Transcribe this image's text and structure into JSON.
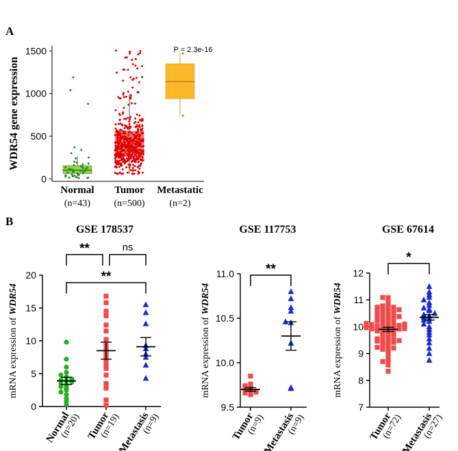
{
  "figure": {
    "panel_a_label": "A",
    "panel_b_label": "B"
  },
  "chart_data": [
    {
      "type": "box",
      "panel": "A",
      "ylabel": "WDR54 gene expression",
      "ylim": [
        -30,
        1560
      ],
      "yticks": [
        0,
        500,
        1000,
        1500
      ],
      "annotation": "P = 2.3e-16",
      "groups": [
        {
          "name": "Normal",
          "n_label": "(n=43)",
          "q1": 60,
          "median": 100,
          "q3": 155,
          "whisker_low": 8,
          "whisker_high": 260,
          "color": "#8BD843",
          "point_color": "#1e8c1e",
          "points": [
            1190,
            1040,
            880,
            370,
            340,
            300,
            250,
            240,
            200,
            190,
            180,
            170,
            160,
            150,
            140,
            135,
            130,
            125,
            120,
            115,
            110,
            105,
            100,
            95,
            90,
            85,
            80,
            75,
            70,
            65,
            60,
            55,
            50,
            45,
            40,
            35,
            30,
            25,
            20,
            15,
            12,
            10,
            8
          ]
        },
        {
          "name": "Tumor",
          "n_label": "(n=500)",
          "q1": 260,
          "median": 380,
          "q3": 560,
          "whisker_low": 60,
          "whisker_high": 1000,
          "color": "#F24A4A",
          "point_color": "#e00000",
          "n_points": 500,
          "seed": 7
        },
        {
          "name": "Metastatic",
          "n_label": "(n=2)",
          "q1": 940,
          "median": 1140,
          "q3": 1350,
          "whisker_low": 740,
          "whisker_high": 1470,
          "color": "#FBB829",
          "point_color": "#e06a00",
          "points": [
            740,
            1470
          ]
        }
      ]
    },
    {
      "type": "scatter",
      "panel": "B1",
      "title": "GSE 178537",
      "ylabel_prefix": "mRNA expression of ",
      "ylabel_gene": "WDR54",
      "ylim": [
        0,
        20
      ],
      "yticks": [
        0,
        5,
        10,
        15,
        20
      ],
      "groups": [
        {
          "name": "Normal",
          "n_label": "(n=20)",
          "marker": "circle",
          "color": "#22b022",
          "mean": 3.9,
          "sem": 0.55,
          "points": [
            9.8,
            7.2,
            6.0,
            5.2,
            4.8,
            4.5,
            4.2,
            4.0,
            3.9,
            3.7,
            3.5,
            3.3,
            3.0,
            2.8,
            2.5,
            2.2,
            1.8,
            1.2,
            0.8,
            0.3
          ]
        },
        {
          "name": "Tumor",
          "n_label": "(n=19)",
          "marker": "square",
          "color": "#f04a4a",
          "mean": 8.5,
          "sem": 1.3,
          "points": [
            16.8,
            15.8,
            14.5,
            13.8,
            12.4,
            11.5,
            10.2,
            9.3,
            8.6,
            8.2,
            7.8,
            7.2,
            6.5,
            5.8,
            4.8,
            3.5,
            2.8,
            1.0,
            0.2
          ]
        },
        {
          "name": "Metastasis",
          "n_label": "(n=9)",
          "marker": "triangle",
          "color": "#1a2bd0",
          "mean": 9.1,
          "sem": 1.4,
          "points": [
            15.5,
            14.3,
            12.6,
            9.3,
            8.8,
            8.0,
            7.5,
            6.3,
            4.3
          ]
        }
      ],
      "brackets": [
        {
          "from": 0,
          "to": 2,
          "label": "**",
          "level": 2
        },
        {
          "from": 0,
          "to": 1,
          "label": "**",
          "level": 1
        },
        {
          "from": 1,
          "to": 2,
          "label": "ns",
          "level": 1
        }
      ]
    },
    {
      "type": "scatter",
      "panel": "B2",
      "title": "GSE 117753",
      "ylabel_prefix": "mRNA expression of ",
      "ylabel_gene": "WDR54",
      "ylim": [
        9.5,
        11.0
      ],
      "yticks": [
        9.5,
        10.0,
        10.5,
        11.0
      ],
      "ytick_labels": [
        "9.5",
        "10.0",
        "10.5",
        "11.0"
      ],
      "groups": [
        {
          "name": "Tumor",
          "n_label": "(n=9)",
          "marker": "square",
          "color": "#f04a4a",
          "mean": 9.7,
          "sem": 0.02,
          "points": [
            9.85,
            9.76,
            9.74,
            9.72,
            9.7,
            9.69,
            9.67,
            9.66,
            9.64
          ]
        },
        {
          "name": "Metastasis",
          "n_label": "(n=9)",
          "marker": "triangle",
          "color": "#1a2bd0",
          "mean": 10.3,
          "sem": 0.16,
          "points": [
            10.8,
            10.72,
            10.62,
            10.58,
            10.46,
            10.45,
            10.22,
            9.72,
            9.71
          ]
        }
      ],
      "brackets": [
        {
          "from": 0,
          "to": 1,
          "label": "**",
          "level": 1
        }
      ]
    },
    {
      "type": "scatter",
      "panel": "B3",
      "title": "GSE 67614",
      "ylabel_prefix": "mRNA expression of ",
      "ylabel_gene": "WDR54",
      "ylim": [
        7,
        12
      ],
      "yticks": [
        7,
        8,
        9,
        10,
        11,
        12
      ],
      "groups": [
        {
          "name": "Tumor",
          "n_label": "(n=72)",
          "marker": "square",
          "color": "#f04a4a",
          "mean": 9.9,
          "sem": 0.08,
          "n_points": 72,
          "seed": 11,
          "spread_mean": 9.9,
          "spread_sd": 0.7,
          "min": 7.95,
          "max": 11.4
        },
        {
          "name": "Metastasis",
          "n_label": "(n=27)",
          "marker": "triangle",
          "color": "#1a2bd0",
          "mean": 10.35,
          "sem": 0.1,
          "points": [
            11.5,
            11.3,
            11.2,
            11.1,
            11.0,
            10.9,
            10.8,
            10.7,
            10.65,
            10.6,
            10.5,
            10.45,
            10.4,
            10.35,
            10.3,
            10.25,
            10.2,
            10.1,
            10.0,
            9.9,
            9.8,
            9.7,
            9.55,
            9.4,
            9.2,
            9.0,
            8.75
          ]
        }
      ],
      "brackets": [
        {
          "from": 0,
          "to": 1,
          "label": "*",
          "level": 1
        }
      ]
    }
  ]
}
